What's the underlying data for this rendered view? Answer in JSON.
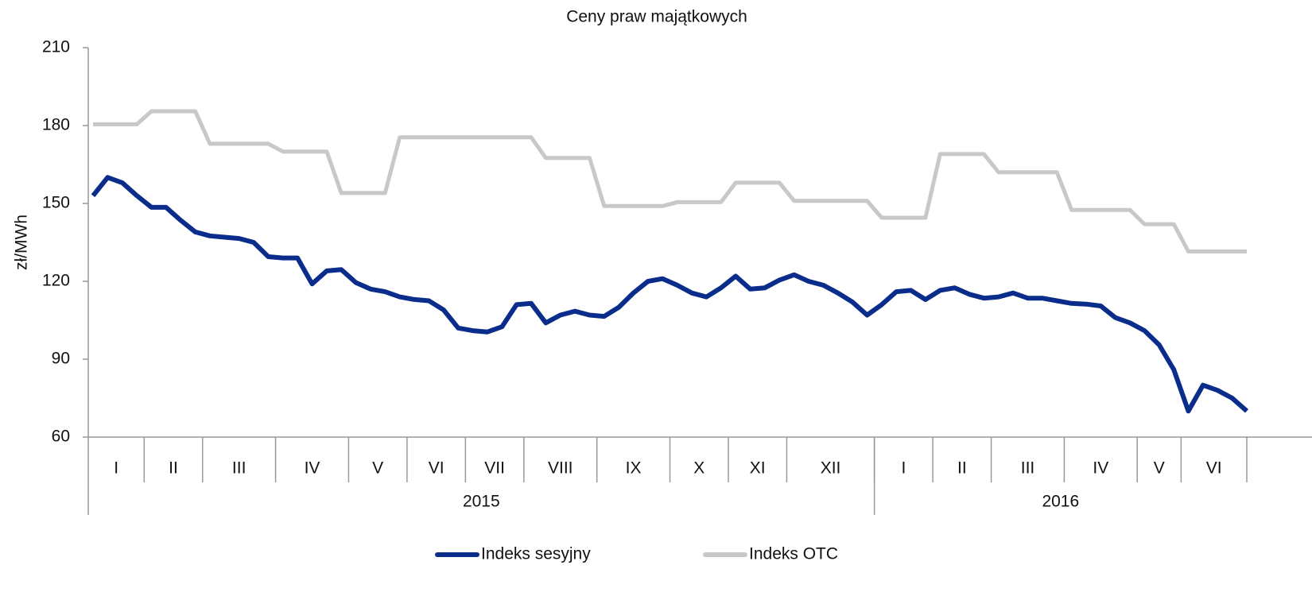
{
  "chart_data": {
    "type": "line",
    "title": "Ceny praw majątkowych",
    "y_label": "zł/MWh",
    "categories": [
      "I",
      "I",
      "I",
      "I",
      "II",
      "II",
      "II",
      "II",
      "III",
      "III",
      "III",
      "III",
      "III",
      "IV",
      "IV",
      "IV",
      "IV",
      "IV",
      "V",
      "V",
      "V",
      "V",
      "VI",
      "VI",
      "VI",
      "VI",
      "VII",
      "VII",
      "VII",
      "VII",
      "VIII",
      "VIII",
      "VIII",
      "VIII",
      "VIII",
      "IX",
      "IX",
      "IX",
      "IX",
      "IX",
      "X",
      "X",
      "X",
      "X",
      "XI",
      "XI",
      "XI",
      "XI",
      "XII",
      "XII",
      "XII",
      "XII",
      "XII",
      "XII",
      "I",
      "I",
      "I",
      "I",
      "II",
      "II",
      "II",
      "II",
      "III",
      "III",
      "III",
      "III",
      "III",
      "IV",
      "IV",
      "IV",
      "IV",
      "IV",
      "V",
      "V",
      "V",
      "VI",
      "VI",
      "VI",
      "VI",
      "VI"
    ],
    "groups": [
      "2015",
      "2015",
      "2015",
      "2015",
      "2015",
      "2015",
      "2015",
      "2015",
      "2015",
      "2015",
      "2015",
      "2015",
      "2015",
      "2015",
      "2015",
      "2015",
      "2015",
      "2015",
      "2015",
      "2015",
      "2015",
      "2015",
      "2015",
      "2015",
      "2015",
      "2015",
      "2015",
      "2015",
      "2015",
      "2015",
      "2015",
      "2015",
      "2015",
      "2015",
      "2015",
      "2015",
      "2015",
      "2015",
      "2015",
      "2015",
      "2015",
      "2015",
      "2015",
      "2015",
      "2015",
      "2015",
      "2015",
      "2015",
      "2015",
      "2015",
      "2015",
      "2015",
      "2015",
      "2015",
      "2016",
      "2016",
      "2016",
      "2016",
      "2016",
      "2016",
      "2016",
      "2016",
      "2016",
      "2016",
      "2016",
      "2016",
      "2016",
      "2016",
      "2016",
      "2016",
      "2016",
      "2016",
      "2016",
      "2016",
      "2016",
      "2016",
      "2016",
      "2016",
      "2016",
      "2016"
    ],
    "series": [
      {
        "name": "Indeks sesyjny",
        "color": "#0a2d8c",
        "values": [
          153,
          160,
          158,
          153,
          148.5,
          148.5,
          143.5,
          139,
          137.5,
          137,
          136.5,
          135,
          129.5,
          129,
          129,
          119,
          124,
          124.5,
          119.5,
          117,
          116,
          114,
          113,
          112.5,
          109,
          102,
          101,
          100.5,
          102.5,
          111,
          111.5,
          104,
          107,
          108.5,
          107,
          106.5,
          110,
          115.5,
          120,
          121,
          118.5,
          115.5,
          114,
          117.5,
          122,
          117,
          117.5,
          120.5,
          122.5,
          120,
          118.5,
          115.5,
          112,
          107,
          111,
          116,
          116.5,
          113,
          116.5,
          117.5,
          115,
          113.5,
          114,
          115.5,
          113.5,
          113.5,
          112.5,
          111.5,
          111.2,
          110.5,
          106,
          104,
          101,
          95.5,
          86,
          70,
          80,
          78,
          75,
          70
        ]
      },
      {
        "name": "Indeks OTC",
        "color": "#c8c8c8",
        "values": [
          180.5,
          180.5,
          180.5,
          180.5,
          185.5,
          185.5,
          185.5,
          185.5,
          173,
          173,
          173,
          173,
          173,
          170,
          170,
          170,
          170,
          154,
          154,
          154,
          154,
          175.5,
          175.5,
          175.5,
          175.5,
          175.5,
          175.5,
          175.5,
          175.5,
          175.5,
          175.5,
          167.5,
          167.5,
          167.5,
          167.5,
          149,
          149,
          149,
          149,
          149,
          150.5,
          150.5,
          150.5,
          150.5,
          158,
          158,
          158,
          158,
          151,
          151,
          151,
          151,
          151,
          151,
          144.5,
          144.5,
          144.5,
          144.5,
          169,
          169,
          169,
          169,
          162,
          162,
          162,
          162,
          162,
          147.5,
          147.5,
          147.5,
          147.5,
          147.5,
          142,
          142,
          142,
          131.5,
          131.5,
          131.5,
          131.5,
          131.5
        ]
      }
    ],
    "ylim": [
      60,
      210
    ],
    "yticks": [
      60,
      90,
      120,
      150,
      180,
      210
    ]
  }
}
